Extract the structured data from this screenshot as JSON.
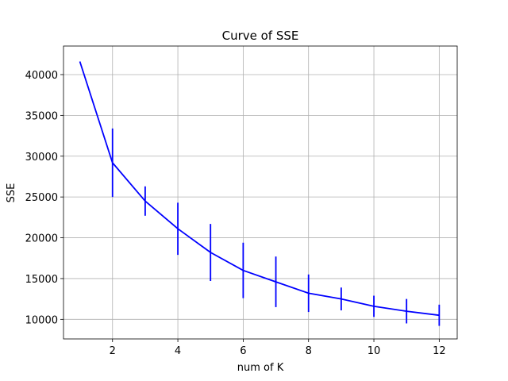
{
  "chart_data": {
    "type": "line",
    "title": "Curve of SSE",
    "xlabel": "num of K",
    "ylabel": "SSE",
    "xlim": [
      0.5,
      12.55
    ],
    "ylim": [
      7600,
      43500
    ],
    "xticks": [
      2,
      4,
      6,
      8,
      10,
      12
    ],
    "yticks": [
      10000,
      15000,
      20000,
      25000,
      30000,
      35000,
      40000
    ],
    "grid": true,
    "series": [
      {
        "color": "#0000ff",
        "x": [
          1,
          2,
          3,
          4,
          5,
          6,
          7,
          8,
          9,
          10,
          11,
          12
        ],
        "y": [
          41600,
          29200,
          24500,
          21100,
          18200,
          16000,
          14600,
          13200,
          12500,
          11600,
          11000,
          10500
        ],
        "error": [
          0,
          4200,
          1800,
          3200,
          3500,
          3400,
          3100,
          2300,
          1400,
          1300,
          1500,
          1300
        ]
      }
    ]
  }
}
